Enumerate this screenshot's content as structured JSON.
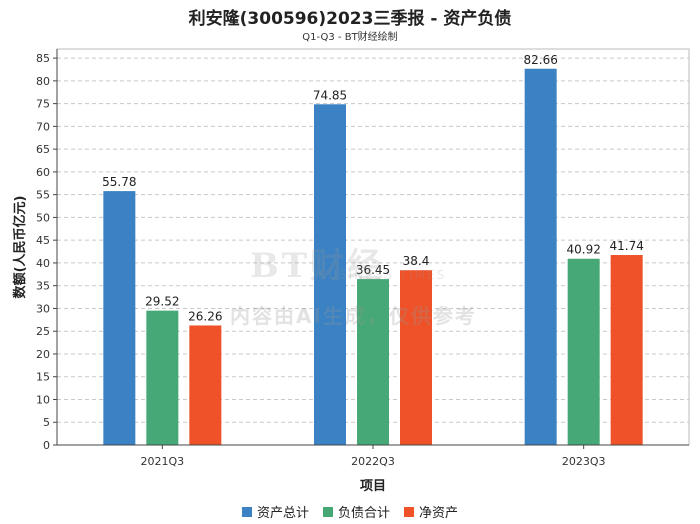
{
  "title": "利安隆(300596)2023三季报 - 资产负债",
  "subtitle": "Q1-Q3 - BT财经绘制",
  "watermark": {
    "logo": "BT财经",
    "logo_sub": "BUSINESS TIMES",
    "text": "内容由AI生成，仅供参考"
  },
  "colors": {
    "资产总计": "#3a82c4",
    "负债合计": "#46a877",
    "净资产": "#ef5228"
  },
  "chart_data": {
    "type": "bar",
    "title": "利安隆(300596)2023三季报 - 资产负债",
    "subtitle": "Q1-Q3 - BT财经绘制",
    "xlabel": "项目",
    "ylabel": "数额(人民币亿元)",
    "categories": [
      "2021Q3",
      "2022Q3",
      "2023Q3"
    ],
    "ylim": [
      0,
      87
    ],
    "yticks": [
      0,
      5,
      10,
      15,
      20,
      25,
      30,
      35,
      40,
      45,
      50,
      55,
      60,
      65,
      70,
      75,
      80,
      85
    ],
    "grid": true,
    "legend": "bottom",
    "series": [
      {
        "name": "资产总计",
        "values": [
          55.78,
          74.85,
          82.66
        ],
        "labels": [
          "55.78",
          "74.85",
          "82.66"
        ]
      },
      {
        "name": "负债合计",
        "values": [
          29.52,
          36.45,
          40.92
        ],
        "labels": [
          "29.52",
          "36.45",
          "40.92"
        ]
      },
      {
        "name": "净资产",
        "values": [
          26.26,
          38.4,
          41.74
        ],
        "labels": [
          "26.26",
          "38.4",
          "41.74"
        ]
      }
    ]
  }
}
